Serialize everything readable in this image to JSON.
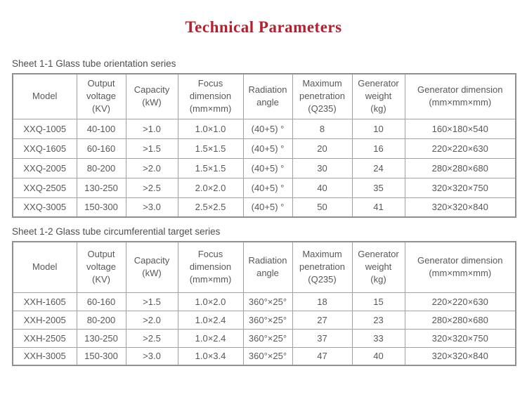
{
  "page": {
    "title": "Technical Parameters",
    "title_color": "#b5202f",
    "table_border_color": "#a2a2a2",
    "text_color": "#585858"
  },
  "sheet1": {
    "caption": "Sheet 1-1 Glass tube orientation series",
    "headers": [
      "Model",
      "Output\nvoltage\n(KV)",
      "Capacity\n(kW)",
      "Focus\ndimension\n(mm×mm)",
      "Radiation\nangle",
      "Maximum\npenetration\n(Q235)",
      "Generator\nweight\n(kg)",
      "Generator dimension\n(mm×mm×mm)"
    ],
    "rows": [
      [
        "XXQ-1005",
        "40-100",
        ">1.0",
        "1.0×1.0",
        "(40+5) °",
        "8",
        "10",
        "160×180×540"
      ],
      [
        "XXQ-1605",
        "60-160",
        ">1.5",
        "1.5×1.5",
        "(40+5) °",
        "20",
        "16",
        "220×220×630"
      ],
      [
        "XXQ-2005",
        "80-200",
        ">2.0",
        "1.5×1.5",
        "(40+5) °",
        "30",
        "24",
        "280×280×680"
      ],
      [
        "XXQ-2505",
        "130-250",
        ">2.5",
        "2.0×2.0",
        "(40+5) °",
        "40",
        "35",
        "320×320×750"
      ],
      [
        "XXQ-3005",
        "150-300",
        ">3.0",
        "2.5×2.5",
        "(40+5) °",
        "50",
        "41",
        "320×320×840"
      ]
    ]
  },
  "sheet2": {
    "caption": "Sheet 1-2 Glass tube circumferential target series",
    "headers": [
      "Model",
      "Output\nvoltage\n(KV)",
      "Capacity\n(kW)",
      "Focus\ndimension\n(mm×mm)",
      "Radiation\nangle",
      "Maximum\npenetration\n(Q235)",
      "Generator\nweight\n(kg)",
      "Generator dimension\n(mm×mm×mm)"
    ],
    "rows": [
      [
        "XXH-1605",
        "60-160",
        ">1.5",
        "1.0×2.0",
        "360°×25°",
        "18",
        "15",
        "220×220×630"
      ],
      [
        "XXH-2005",
        "80-200",
        ">2.0",
        "1.0×2.4",
        "360°×25°",
        "27",
        "23",
        "280×280×680"
      ],
      [
        "XXH-2505",
        "130-250",
        ">2.5",
        "1.0×2.4",
        "360°×25°",
        "37",
        "33",
        "320×320×750"
      ],
      [
        "XXH-3005",
        "150-300",
        ">3.0",
        "1.0×3.4",
        "360°×25°",
        "47",
        "40",
        "320×320×840"
      ]
    ]
  }
}
